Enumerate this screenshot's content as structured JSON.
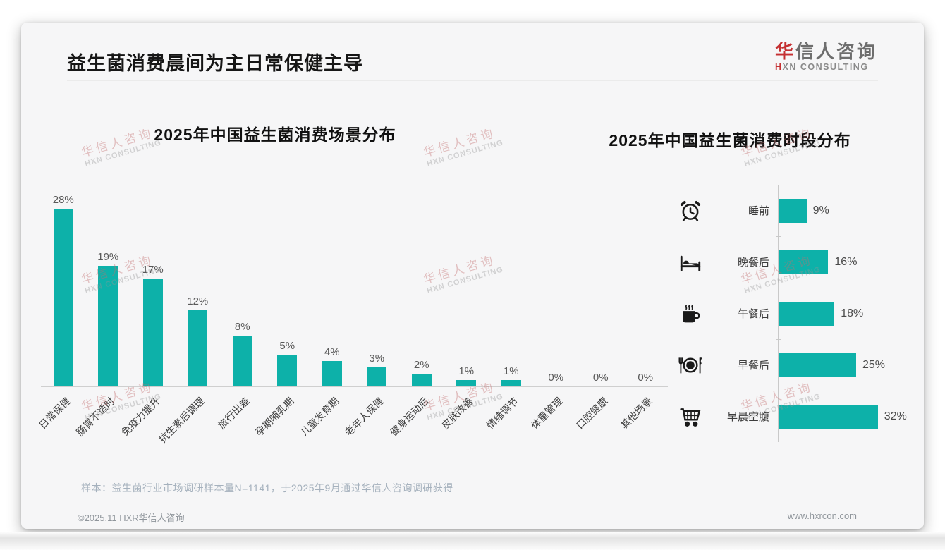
{
  "slide": {
    "title": "益生菌消费晨间为主日常保健主导",
    "logo": {
      "zh_first": "华",
      "zh_rest": "信人咨询",
      "en_first": "H",
      "en_rest": "XN CONSULTING"
    },
    "watermark": {
      "line1": "华信人咨询",
      "line2": "HXN CONSULTING"
    },
    "footnote": "样本：益生菌行业市场调研样本量N=1141，于2025年9月通过华信人咨询调研获得",
    "footer": {
      "left": "©2025.11 HXR华信人咨询",
      "right": "www.hxrcon.com"
    }
  },
  "colors": {
    "accent": "#0db1a9",
    "logo_red": "#c53032",
    "watermark_red": "rgba(195,110,110,0.40)"
  },
  "chart_data": [
    {
      "type": "bar",
      "orientation": "vertical",
      "title": "2025年中国益生菌消费场景分布",
      "categories": [
        "日常保健",
        "肠胃不适时",
        "免疫力提升",
        "抗生素后调理",
        "旅行出差",
        "孕期哺乳期",
        "儿童发育期",
        "老年人保健",
        "健身运动后",
        "皮肤改善",
        "情绪调节",
        "体重管理",
        "口腔健康",
        "其他场景"
      ],
      "values": [
        28,
        19,
        17,
        12,
        8,
        5,
        4,
        3,
        2,
        1,
        1,
        0,
        0,
        0
      ],
      "unit": "%",
      "ylim": [
        0,
        30
      ],
      "bar_color": "#0db1a9",
      "value_labels_shown": true,
      "gridlines": false,
      "legend": "none"
    },
    {
      "type": "bar",
      "orientation": "horizontal",
      "title": "2025年中国益生菌消费时段分布",
      "categories": [
        "睡前",
        "晚餐后",
        "午餐后",
        "早餐后",
        "早晨空腹"
      ],
      "values": [
        9,
        16,
        18,
        25,
        32
      ],
      "unit": "%",
      "xlim": [
        0,
        35
      ],
      "bar_color": "#0db1a9",
      "icons": [
        "alarm-clock-icon",
        "bed-icon",
        "coffee-icon",
        "dining-icon",
        "cart-icon"
      ],
      "value_labels_shown": true,
      "gridlines": false,
      "legend": "none"
    }
  ]
}
